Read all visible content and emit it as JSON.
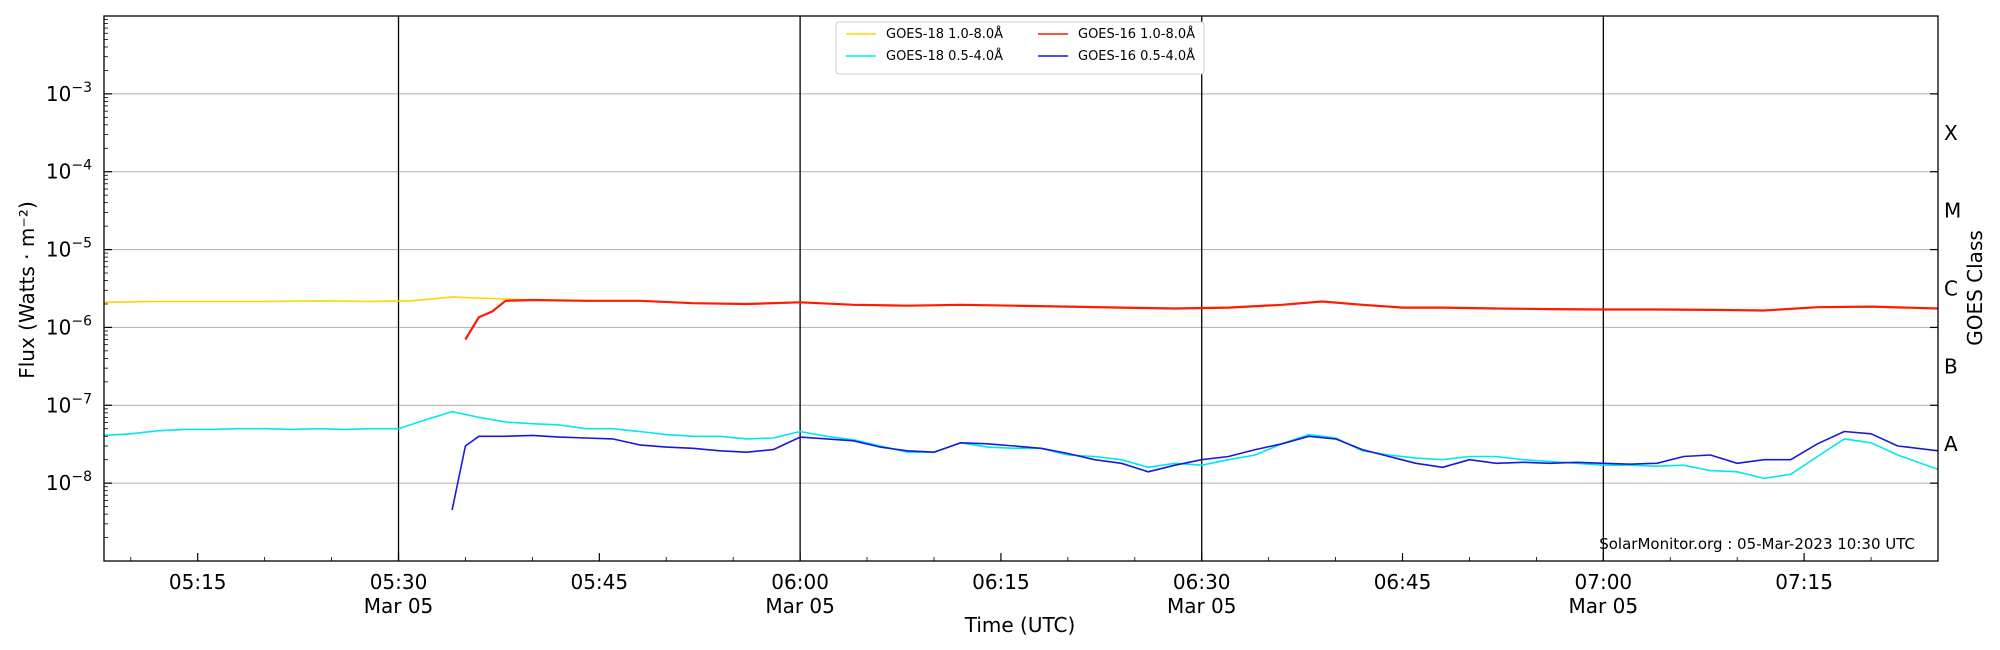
{
  "chart_data": {
    "type": "line",
    "xlabel": "Time (UTC)",
    "ylabel": "Flux (Watts · m⁻²)",
    "ylabel_right": "GOES Class",
    "y_scale": "log",
    "xlim": [
      "05:08",
      "07:25"
    ],
    "ylim": [
      1e-09,
      0.01
    ],
    "grid": "horizontal at decades",
    "legend_placement": "top-center",
    "credit": "SolarMonitor.org : 05-Mar-2023 10:30 UTC",
    "x_ticks": [
      {
        "t": "05:15",
        "label": "05:15",
        "date": ""
      },
      {
        "t": "05:30",
        "label": "05:30",
        "date": "Mar 05"
      },
      {
        "t": "05:45",
        "label": "05:45",
        "date": ""
      },
      {
        "t": "06:00",
        "label": "06:00",
        "date": "Mar 05"
      },
      {
        "t": "06:15",
        "label": "06:15",
        "date": ""
      },
      {
        "t": "06:30",
        "label": "06:30",
        "date": "Mar 05"
      },
      {
        "t": "06:45",
        "label": "06:45",
        "date": ""
      },
      {
        "t": "07:00",
        "label": "07:00",
        "date": "Mar 05"
      },
      {
        "t": "07:15",
        "label": "07:15",
        "date": ""
      }
    ],
    "vertical_lines": [
      "05:30",
      "06:00",
      "06:30",
      "07:00"
    ],
    "y_ticks": [
      {
        "exp": -8,
        "base": "10",
        "sup": "−8"
      },
      {
        "exp": -7,
        "base": "10",
        "sup": "−7"
      },
      {
        "exp": -6,
        "base": "10",
        "sup": "−6"
      },
      {
        "exp": -5,
        "base": "10",
        "sup": "−5"
      },
      {
        "exp": -4,
        "base": "10",
        "sup": "−4"
      },
      {
        "exp": -3,
        "base": "10",
        "sup": "−3"
      }
    ],
    "goes_classes": [
      {
        "label": "A",
        "flux": 3.16e-08
      },
      {
        "label": "B",
        "flux": 3.16e-07
      },
      {
        "label": "C",
        "flux": 3.16e-06
      },
      {
        "label": "M",
        "flux": 3.16e-05
      },
      {
        "label": "X",
        "flux": 0.000316
      }
    ],
    "series": [
      {
        "name": "GOES-18 1.0-8.0Å",
        "color": "#ffd400",
        "points": [
          [
            "05:08",
            2.1e-06
          ],
          [
            "05:12",
            2.15e-06
          ],
          [
            "05:16",
            2.15e-06
          ],
          [
            "05:20",
            2.15e-06
          ],
          [
            "05:24",
            2.2e-06
          ],
          [
            "05:28",
            2.15e-06
          ],
          [
            "05:31",
            2.2e-06
          ],
          [
            "05:34",
            2.45e-06
          ],
          [
            "05:37",
            2.35e-06
          ],
          [
            "05:40",
            2.25e-06
          ]
        ]
      },
      {
        "name": "GOES-18 0.5-4.0Å",
        "color": "#00e8ee",
        "points": [
          [
            "05:08",
            4.1e-08
          ],
          [
            "05:10",
            4.3e-08
          ],
          [
            "05:12",
            4.7e-08
          ],
          [
            "05:14",
            4.9e-08
          ],
          [
            "05:16",
            4.9e-08
          ],
          [
            "05:18",
            5e-08
          ],
          [
            "05:20",
            5e-08
          ],
          [
            "05:22",
            4.9e-08
          ],
          [
            "05:24",
            5e-08
          ],
          [
            "05:26",
            4.9e-08
          ],
          [
            "05:28",
            5e-08
          ],
          [
            "05:30",
            5e-08
          ],
          [
            "05:32",
            6.5e-08
          ],
          [
            "05:34",
            8.3e-08
          ],
          [
            "05:36",
            7e-08
          ],
          [
            "05:38",
            6.1e-08
          ],
          [
            "05:40",
            5.8e-08
          ],
          [
            "05:42",
            5.6e-08
          ],
          [
            "05:44",
            5e-08
          ],
          [
            "05:46",
            5e-08
          ],
          [
            "05:48",
            4.6e-08
          ],
          [
            "05:50",
            4.2e-08
          ],
          [
            "05:52",
            4e-08
          ],
          [
            "05:54",
            4e-08
          ],
          [
            "05:56",
            3.7e-08
          ],
          [
            "05:58",
            3.8e-08
          ],
          [
            "06:00",
            4.6e-08
          ],
          [
            "06:02",
            4e-08
          ],
          [
            "06:04",
            3.6e-08
          ],
          [
            "06:06",
            3e-08
          ],
          [
            "06:08",
            2.5e-08
          ],
          [
            "06:10",
            2.5e-08
          ],
          [
            "06:12",
            3.3e-08
          ],
          [
            "06:14",
            2.9e-08
          ],
          [
            "06:16",
            2.8e-08
          ],
          [
            "06:18",
            2.8e-08
          ],
          [
            "06:20",
            2.3e-08
          ],
          [
            "06:22",
            2.2e-08
          ],
          [
            "06:24",
            2e-08
          ],
          [
            "06:26",
            1.6e-08
          ],
          [
            "06:28",
            1.8e-08
          ],
          [
            "06:30",
            1.7e-08
          ],
          [
            "06:32",
            2e-08
          ],
          [
            "06:34",
            2.3e-08
          ],
          [
            "06:36",
            3.2e-08
          ],
          [
            "06:38",
            4.2e-08
          ],
          [
            "06:40",
            3.8e-08
          ],
          [
            "06:42",
            2.6e-08
          ],
          [
            "06:44",
            2.3e-08
          ],
          [
            "06:46",
            2.1e-08
          ],
          [
            "06:48",
            2e-08
          ],
          [
            "06:50",
            2.2e-08
          ],
          [
            "06:52",
            2.2e-08
          ],
          [
            "06:54",
            2e-08
          ],
          [
            "06:56",
            1.9e-08
          ],
          [
            "06:58",
            1.8e-08
          ],
          [
            "07:00",
            1.7e-08
          ],
          [
            "07:02",
            1.7e-08
          ],
          [
            "07:04",
            1.65e-08
          ],
          [
            "07:06",
            1.7e-08
          ],
          [
            "07:08",
            1.45e-08
          ],
          [
            "07:10",
            1.4e-08
          ],
          [
            "07:12",
            1.15e-08
          ],
          [
            "07:14",
            1.3e-08
          ],
          [
            "07:16",
            2.2e-08
          ],
          [
            "07:18",
            3.7e-08
          ],
          [
            "07:20",
            3.3e-08
          ],
          [
            "07:22",
            2.3e-08
          ],
          [
            "07:25",
            1.5e-08
          ]
        ]
      },
      {
        "name": "GOES-16 1.0-8.0Å",
        "color": "#ff1a00",
        "points": [
          [
            "05:35",
            7e-07
          ],
          [
            "05:36",
            1.35e-06
          ],
          [
            "05:37",
            1.6e-06
          ],
          [
            "05:38",
            2.2e-06
          ],
          [
            "05:40",
            2.25e-06
          ],
          [
            "05:44",
            2.2e-06
          ],
          [
            "05:48",
            2.2e-06
          ],
          [
            "05:52",
            2.05e-06
          ],
          [
            "05:56",
            2e-06
          ],
          [
            "06:00",
            2.1e-06
          ],
          [
            "06:04",
            1.95e-06
          ],
          [
            "06:08",
            1.9e-06
          ],
          [
            "06:12",
            1.95e-06
          ],
          [
            "06:16",
            1.9e-06
          ],
          [
            "06:20",
            1.85e-06
          ],
          [
            "06:24",
            1.8e-06
          ],
          [
            "06:28",
            1.75e-06
          ],
          [
            "06:32",
            1.8e-06
          ],
          [
            "06:36",
            1.95e-06
          ],
          [
            "06:39",
            2.15e-06
          ],
          [
            "06:42",
            1.95e-06
          ],
          [
            "06:45",
            1.8e-06
          ],
          [
            "06:48",
            1.8e-06
          ],
          [
            "06:52",
            1.75e-06
          ],
          [
            "06:56",
            1.72e-06
          ],
          [
            "07:00",
            1.7e-06
          ],
          [
            "07:04",
            1.7e-06
          ],
          [
            "07:08",
            1.68e-06
          ],
          [
            "07:12",
            1.65e-06
          ],
          [
            "07:16",
            1.82e-06
          ],
          [
            "07:20",
            1.85e-06
          ],
          [
            "07:25",
            1.75e-06
          ]
        ]
      },
      {
        "name": "GOES-16 0.5-4.0Å",
        "color": "#1a1ad6",
        "points": [
          [
            "05:34",
            4.5e-09
          ],
          [
            "05:35",
            3e-08
          ],
          [
            "05:36",
            4e-08
          ],
          [
            "05:38",
            4e-08
          ],
          [
            "05:40",
            4.1e-08
          ],
          [
            "05:42",
            3.9e-08
          ],
          [
            "05:44",
            3.8e-08
          ],
          [
            "05:46",
            3.7e-08
          ],
          [
            "05:48",
            3.1e-08
          ],
          [
            "05:50",
            2.9e-08
          ],
          [
            "05:52",
            2.8e-08
          ],
          [
            "05:54",
            2.6e-08
          ],
          [
            "05:56",
            2.5e-08
          ],
          [
            "05:58",
            2.7e-08
          ],
          [
            "06:00",
            3.9e-08
          ],
          [
            "06:02",
            3.7e-08
          ],
          [
            "06:04",
            3.5e-08
          ],
          [
            "06:06",
            2.9e-08
          ],
          [
            "06:08",
            2.6e-08
          ],
          [
            "06:10",
            2.5e-08
          ],
          [
            "06:12",
            3.3e-08
          ],
          [
            "06:14",
            3.2e-08
          ],
          [
            "06:16",
            3e-08
          ],
          [
            "06:18",
            2.8e-08
          ],
          [
            "06:20",
            2.4e-08
          ],
          [
            "06:22",
            2e-08
          ],
          [
            "06:24",
            1.8e-08
          ],
          [
            "06:26",
            1.4e-08
          ],
          [
            "06:28",
            1.7e-08
          ],
          [
            "06:30",
            2e-08
          ],
          [
            "06:32",
            2.2e-08
          ],
          [
            "06:34",
            2.7e-08
          ],
          [
            "06:36",
            3.2e-08
          ],
          [
            "06:38",
            4e-08
          ],
          [
            "06:40",
            3.7e-08
          ],
          [
            "06:42",
            2.7e-08
          ],
          [
            "06:44",
            2.2e-08
          ],
          [
            "06:46",
            1.8e-08
          ],
          [
            "06:48",
            1.6e-08
          ],
          [
            "06:50",
            2e-08
          ],
          [
            "06:52",
            1.8e-08
          ],
          [
            "06:54",
            1.85e-08
          ],
          [
            "06:56",
            1.8e-08
          ],
          [
            "06:58",
            1.85e-08
          ],
          [
            "07:00",
            1.8e-08
          ],
          [
            "07:02",
            1.75e-08
          ],
          [
            "07:04",
            1.8e-08
          ],
          [
            "07:06",
            2.2e-08
          ],
          [
            "07:08",
            2.3e-08
          ],
          [
            "07:10",
            1.8e-08
          ],
          [
            "07:12",
            2e-08
          ],
          [
            "07:14",
            2e-08
          ],
          [
            "07:16",
            3.2e-08
          ],
          [
            "07:18",
            4.6e-08
          ],
          [
            "07:20",
            4.3e-08
          ],
          [
            "07:22",
            3e-08
          ],
          [
            "07:25",
            2.6e-08
          ]
        ]
      }
    ]
  }
}
